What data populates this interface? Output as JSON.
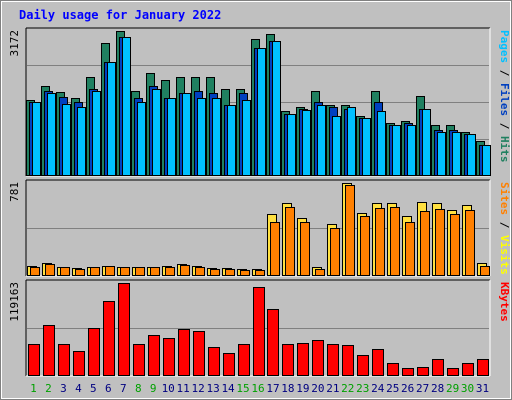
{
  "chart_data": {
    "type": "bar",
    "title": "Daily usage for January 2022",
    "categories": [
      "1",
      "2",
      "3",
      "4",
      "5",
      "6",
      "7",
      "8",
      "9",
      "10",
      "11",
      "12",
      "13",
      "14",
      "15",
      "16",
      "17",
      "18",
      "19",
      "20",
      "21",
      "22",
      "23",
      "24",
      "25",
      "26",
      "27",
      "28",
      "29",
      "30",
      "31"
    ],
    "weekend_days": [
      "1",
      "2",
      "8",
      "9",
      "15",
      "16",
      "22",
      "23",
      "29",
      "30"
    ],
    "panels": [
      {
        "id": "hits",
        "ymax_label": "3172",
        "ymax": 3172,
        "right_label": [
          {
            "text": "Pages",
            "color": "#00c0ff"
          },
          {
            "text": " / ",
            "color": "#000000"
          },
          {
            "text": "Files",
            "color": "#0040c0"
          },
          {
            "text": " / ",
            "color": "#000000"
          },
          {
            "text": "Hits",
            "color": "#208060"
          }
        ],
        "series": [
          {
            "name": "Hits",
            "color": "#208060",
            "values": [
              1650,
              1950,
              1820,
              1700,
              2150,
              2900,
              3172,
              1850,
              2250,
              2100,
              2150,
              2150,
              2150,
              1900,
              1900,
              3000,
              3100,
              1400,
              1500,
              1850,
              1550,
              1550,
              1300,
              1850,
              1150,
              1200,
              1750,
              1100,
              1100,
              950,
              750
            ]
          },
          {
            "name": "Files",
            "color": "#0040c0",
            "values": [
              1600,
              1850,
              1720,
              1600,
              1900,
              2500,
              3050,
              1700,
              1950,
              1700,
              1800,
              1850,
              1800,
              1550,
              1800,
              2800,
              2950,
              1350,
              1450,
              1600,
              1500,
              1450,
              1250,
              1600,
              1100,
              1150,
              1450,
              1000,
              1000,
              900,
              650
            ]
          },
          {
            "name": "Pages",
            "color": "#00c0ff",
            "values": [
              1600,
              1800,
              1560,
              1500,
              1850,
              2500,
              3050,
              1600,
              1900,
              1700,
              1800,
              1700,
              1700,
              1550,
              1650,
              2800,
              2950,
              1350,
              1430,
              1550,
              1300,
              1500,
              1250,
              1400,
              1100,
              1100,
              1450,
              950,
              950,
              900,
              650
            ]
          }
        ]
      },
      {
        "id": "visits",
        "ymax_label": "781",
        "ymax": 781,
        "right_label": [
          {
            "text": "Sites",
            "color": "#ff8000"
          },
          {
            "text": " / ",
            "color": "#000000"
          },
          {
            "text": "Visits",
            "color": "#ffff00"
          }
        ],
        "series": [
          {
            "name": "Visits",
            "color": "#ffe040",
            "values": [
              80,
              100,
              70,
              60,
              70,
              80,
              70,
              70,
              70,
              75,
              95,
              80,
              60,
              60,
              50,
              50,
              520,
              610,
              480,
              65,
              430,
              781,
              530,
              610,
              610,
              500,
              620,
              610,
              550,
              590,
              100
            ]
          },
          {
            "name": "Sites",
            "color": "#ff8000",
            "values": [
              70,
              90,
              65,
              55,
              65,
              75,
              65,
              65,
              65,
              70,
              85,
              70,
              55,
              55,
              45,
              40,
              450,
              580,
              450,
              55,
              400,
              760,
              500,
              570,
              580,
              450,
              540,
              560,
              520,
              550,
              80
            ]
          }
        ]
      },
      {
        "id": "kbytes",
        "ymax_label": "119163",
        "ymax": 119163,
        "right_label": [
          {
            "text": "KBytes",
            "color": "#ff0000"
          }
        ],
        "series": [
          {
            "name": "KBytes",
            "color": "#ff0000",
            "values": [
              40000,
              65000,
              40000,
              31000,
              61000,
              96000,
              119163,
              40000,
              52000,
              48000,
              60000,
              57000,
              36000,
              28000,
              40000,
              114000,
              85000,
              40000,
              42000,
              45000,
              40000,
              39000,
              26000,
              34000,
              15000,
              9000,
              10000,
              21000,
              9500,
              16000,
              21000
            ]
          }
        ]
      }
    ],
    "colors": {
      "frame_bg": "#c0c0c0",
      "plot_bg": "#c0c0c0",
      "grid": "#808080",
      "title": "#0000ff",
      "label_black": "#000000",
      "weekday_label": "#000080",
      "weekend_label": "#00a000",
      "bar_outline": "#000000"
    }
  }
}
